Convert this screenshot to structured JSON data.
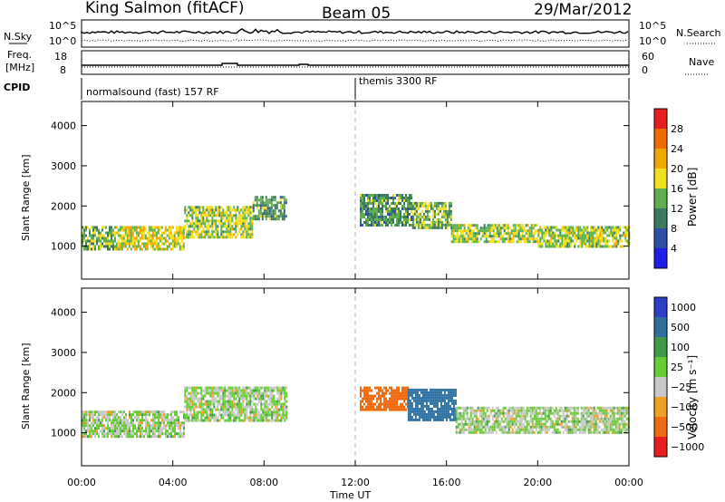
{
  "header": {
    "station": "King Salmon (fitACF)",
    "beam": "Beam 05",
    "date": "29/Mar/2012"
  },
  "summary": {
    "nsky_label": "N.Sky",
    "nsearch_label": "N.Search",
    "freq_label_line1": "Freq.",
    "freq_label_line2": "[MHz]",
    "nave_label": "Nave",
    "cpid_label": "CPID",
    "noise_left_ticks": [
      "10^5",
      "10^0"
    ],
    "noise_right_ticks": [
      "10^5",
      "10^0"
    ],
    "freq_left_ticks": [
      "18",
      "8"
    ],
    "nave_right_ticks": [
      "60",
      "0"
    ]
  },
  "cpid": {
    "segments": [
      {
        "label": "normalsound (fast) 157 RF",
        "start_hour": 0,
        "end_hour": 12
      },
      {
        "label": "themis 3300 RF",
        "start_hour": 12,
        "end_hour": 24
      }
    ]
  },
  "chart_data": [
    {
      "type": "heatmap",
      "name": "power",
      "ylabel": "Slant Range [km]",
      "xlim": [
        0,
        24
      ],
      "ylim": [
        180,
        4600
      ],
      "yticks": [
        "1000",
        "2000",
        "3000",
        "4000"
      ],
      "colorbar": {
        "label": "Power [dB]",
        "range": [
          0,
          32
        ],
        "tick_values": [
          4,
          8,
          12,
          16,
          20,
          24,
          28
        ],
        "tick_labels": [
          "4",
          "8",
          "12",
          "16",
          "20",
          "24",
          "28"
        ],
        "colors": [
          "#1e1ee6",
          "#2e4fa8",
          "#3b7a5e",
          "#5fae4f",
          "#f0e020",
          "#f0a800",
          "#f06a00",
          "#e61e1e"
        ]
      },
      "bands": [
        {
          "start_hour": 0.0,
          "end_hour": 1.5,
          "range_km": [
            900,
            1500
          ],
          "power_db": 14
        },
        {
          "start_hour": 1.5,
          "end_hour": 4.5,
          "range_km": [
            950,
            1500
          ],
          "power_db": 18
        },
        {
          "start_hour": 4.5,
          "end_hour": 7.5,
          "range_km": [
            1250,
            2000
          ],
          "power_db": 16
        },
        {
          "start_hour": 7.5,
          "end_hour": 9.0,
          "range_km": [
            1700,
            2250
          ],
          "power_db": 12
        },
        {
          "start_hour": 12.2,
          "end_hour": 14.5,
          "range_km": [
            1550,
            2300
          ],
          "power_db": 12
        },
        {
          "start_hour": 14.5,
          "end_hour": 16.2,
          "range_km": [
            1450,
            2100
          ],
          "power_db": 14
        },
        {
          "start_hour": 16.2,
          "end_hour": 20.0,
          "range_km": [
            1100,
            1550
          ],
          "power_db": 16
        },
        {
          "start_hour": 20.0,
          "end_hour": 24.0,
          "range_km": [
            1000,
            1500
          ],
          "power_db": 16
        }
      ]
    },
    {
      "type": "heatmap",
      "name": "velocity",
      "xlabel": "Time UT",
      "ylabel": "Slant Range [km]",
      "xlim": [
        0,
        24
      ],
      "ylim": [
        180,
        4600
      ],
      "xticks": [
        "00:00",
        "04:00",
        "08:00",
        "12:00",
        "16:00",
        "20:00",
        "00:00"
      ],
      "yticks": [
        "1000",
        "2000",
        "3000",
        "4000"
      ],
      "colorbar": {
        "label": "Velocity [m s⁻¹]",
        "tick_labels": [
          "1000",
          "500",
          "100",
          "25",
          "−25",
          "−100",
          "−500",
          "−1000"
        ],
        "colors": [
          "#2a3ec8",
          "#2f6fa0",
          "#3f9a4a",
          "#66cc33",
          "#c8c8c8",
          "#f0a020",
          "#f06a10",
          "#e61e1e"
        ]
      },
      "bands": [
        {
          "start_hour": 0.0,
          "end_hour": 4.5,
          "range_km": [
            900,
            1550
          ],
          "velocity_ms": 0
        },
        {
          "start_hour": 4.5,
          "end_hour": 9.0,
          "range_km": [
            1300,
            2150
          ],
          "velocity_ms": 0
        },
        {
          "start_hour": 12.2,
          "end_hour": 14.3,
          "range_km": [
            1550,
            2150
          ],
          "velocity_ms": -200
        },
        {
          "start_hour": 14.3,
          "end_hour": 16.4,
          "range_km": [
            1350,
            2100
          ],
          "velocity_ms": 150
        },
        {
          "start_hour": 16.4,
          "end_hour": 24.0,
          "range_km": [
            1000,
            1650
          ],
          "velocity_ms": 0
        }
      ]
    }
  ]
}
